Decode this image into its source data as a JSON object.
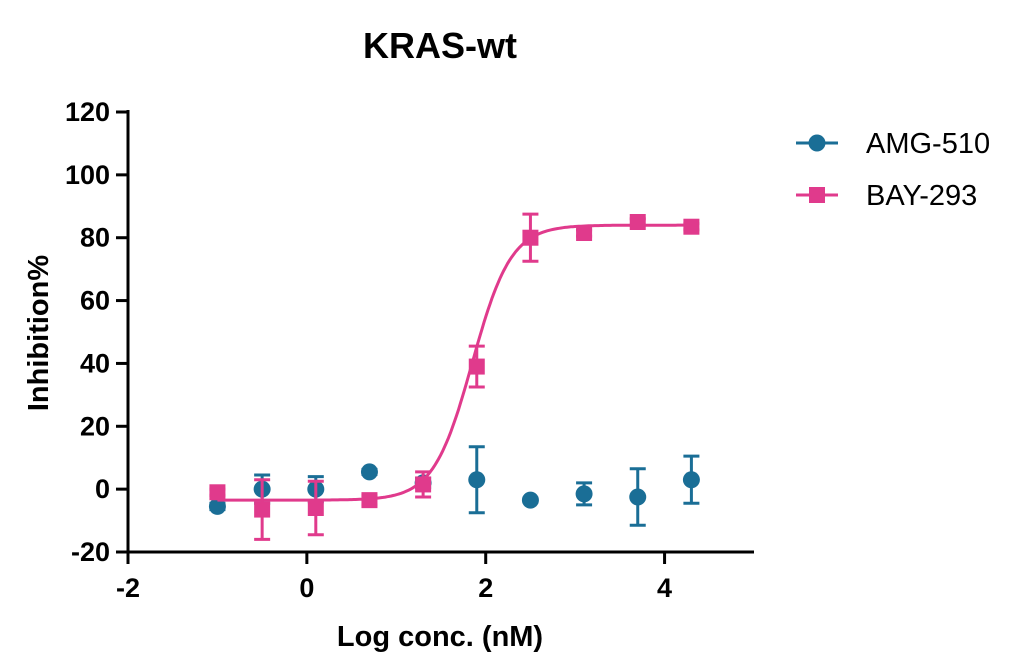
{
  "chart_data": {
    "type": "scatter",
    "title": "KRAS-wt",
    "xlabel": "Log conc. (nM)",
    "ylabel": "Inhibition%",
    "xlim": [
      -2,
      5
    ],
    "ylim": [
      -20,
      120
    ],
    "xticks": [
      -2,
      0,
      2,
      4
    ],
    "yticks": [
      -20,
      0,
      20,
      40,
      60,
      80,
      100,
      120
    ],
    "grid": false,
    "legend_position": "top-right",
    "series": [
      {
        "name": "AMG-510",
        "color": "#1a6e96",
        "marker": "circle",
        "points": [
          {
            "x": -1.0,
            "y": -5.5,
            "err": 1.0
          },
          {
            "x": -0.5,
            "y": 0.0,
            "err": 4.5
          },
          {
            "x": 0.1,
            "y": 0.0,
            "err": 4.0
          },
          {
            "x": 0.7,
            "y": 5.5,
            "err": 0.8
          },
          {
            "x": 1.3,
            "y": 2.0,
            "err": 1.5
          },
          {
            "x": 1.9,
            "y": 3.0,
            "err": 10.5
          },
          {
            "x": 2.5,
            "y": -3.5,
            "err": 0.6
          },
          {
            "x": 3.1,
            "y": -1.5,
            "err": 3.5
          },
          {
            "x": 3.7,
            "y": -2.5,
            "err": 9.0
          },
          {
            "x": 4.3,
            "y": 3.0,
            "err": 7.5
          }
        ]
      },
      {
        "name": "BAY-293",
        "color": "#e03a8c",
        "marker": "square",
        "fit": {
          "bottom": -3.5,
          "top": 84,
          "logIC50": 1.85,
          "hill": 2.0
        },
        "points": [
          {
            "x": -1.0,
            "y": -1.0,
            "err": 1.0
          },
          {
            "x": -0.5,
            "y": -6.5,
            "err": 9.5
          },
          {
            "x": 0.1,
            "y": -6.0,
            "err": 8.5
          },
          {
            "x": 0.7,
            "y": -3.5,
            "err": 1.5
          },
          {
            "x": 1.3,
            "y": 1.5,
            "err": 4.0
          },
          {
            "x": 1.9,
            "y": 39.0,
            "err": 6.5
          },
          {
            "x": 2.5,
            "y": 80.0,
            "err": 7.5
          },
          {
            "x": 3.1,
            "y": 81.5,
            "err": 1.0
          },
          {
            "x": 3.7,
            "y": 85.0,
            "err": 1.0
          },
          {
            "x": 4.3,
            "y": 83.5,
            "err": 1.0
          }
        ]
      }
    ]
  }
}
